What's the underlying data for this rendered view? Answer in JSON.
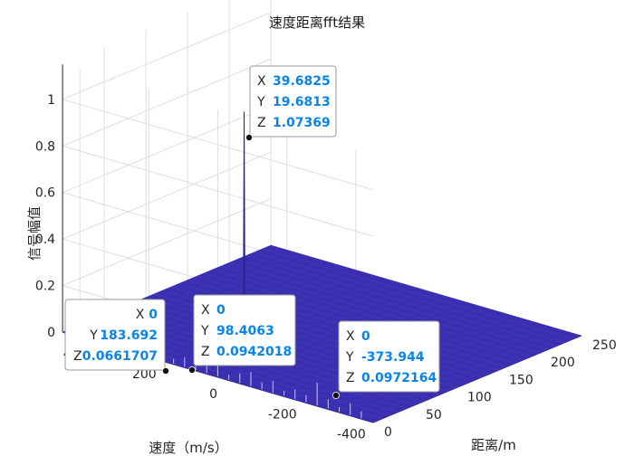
{
  "chart_data": {
    "type": "surface",
    "title": "速度距离fft结果",
    "xlabel": "距离/m",
    "ylabel": "速度（m/s）",
    "zlabel": "信号幅值",
    "x_ticks": [
      "0",
      "50",
      "100",
      "150",
      "200",
      "250"
    ],
    "y_ticks": [
      "400",
      "200",
      "0",
      "-200",
      "-400"
    ],
    "z_ticks": [
      "0",
      "0.2",
      "0.4",
      "0.6",
      "0.8",
      "1"
    ],
    "xlim": [
      0,
      250
    ],
    "ylim": [
      -450,
      450
    ],
    "zlim": [
      0,
      1.15
    ],
    "grid": true,
    "surface_color": "#3a2fb0",
    "peak": {
      "x": 39.6825,
      "y": 19.6813,
      "z": 1.07369
    },
    "datatips": [
      {
        "keys": [
          "X",
          "Y",
          "Z"
        ],
        "values": [
          "39.6825",
          "19.6813",
          "1.07369"
        ]
      },
      {
        "keys": [
          "X",
          "Y",
          "Z"
        ],
        "values": [
          "0",
          "183.692",
          "0.0661707"
        ]
      },
      {
        "keys": [
          "X",
          "Y",
          "Z"
        ],
        "values": [
          "0",
          "98.4063",
          "0.0942018"
        ]
      },
      {
        "keys": [
          "X",
          "Y",
          "Z"
        ],
        "values": [
          "0",
          "-373.944",
          "0.0972164"
        ]
      }
    ]
  }
}
